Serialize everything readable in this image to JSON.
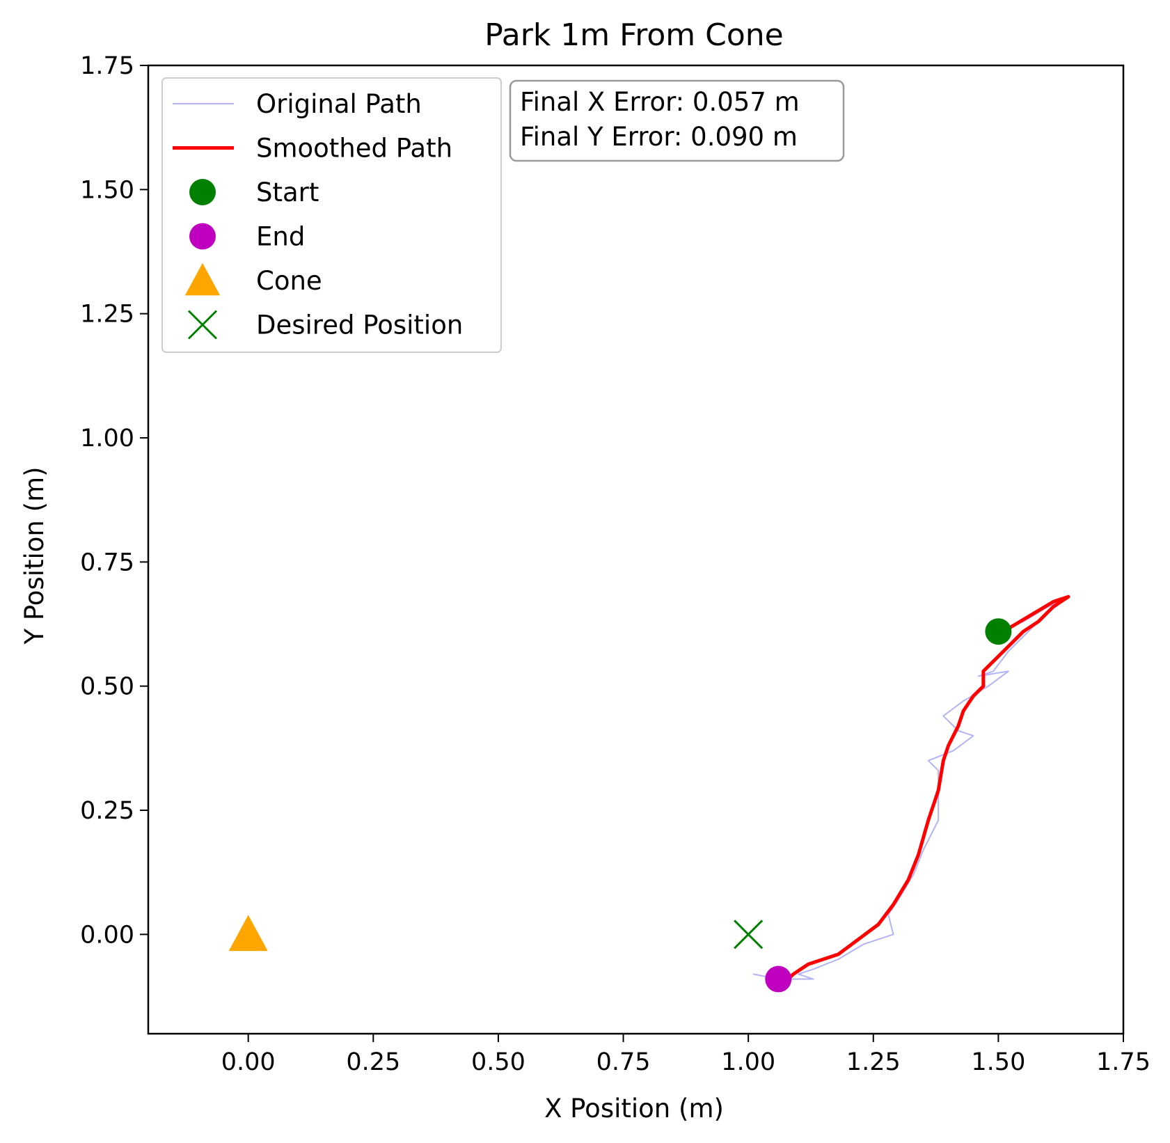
{
  "chart_data": {
    "type": "scatter",
    "title": "Park 1m From Cone",
    "xlabel": "X Position (m)",
    "ylabel": "Y Position (m)",
    "xlim": [
      -0.2,
      1.75
    ],
    "ylim": [
      -0.2,
      1.75
    ],
    "xticks": [
      0.0,
      0.25,
      0.5,
      0.75,
      1.0,
      1.25,
      1.5,
      1.75
    ],
    "yticks": [
      0.0,
      0.25,
      0.5,
      0.75,
      1.0,
      1.25,
      1.5,
      1.75
    ],
    "xtick_labels": [
      "0.00",
      "0.25",
      "0.50",
      "0.75",
      "1.00",
      "1.25",
      "1.50",
      "1.75"
    ],
    "ytick_labels": [
      "0.00",
      "0.25",
      "0.50",
      "0.75",
      "1.00",
      "1.25",
      "1.50",
      "1.75"
    ],
    "grid": false,
    "legend_position": "upper-left",
    "series": [
      {
        "name": "Original Path",
        "kind": "line",
        "color": "#b3b3f5",
        "points": [
          [
            1.5,
            0.61
          ],
          [
            1.55,
            0.63
          ],
          [
            1.6,
            0.66
          ],
          [
            1.64,
            0.68
          ],
          [
            1.59,
            0.64
          ],
          [
            1.55,
            0.6
          ],
          [
            1.52,
            0.57
          ],
          [
            1.49,
            0.53
          ],
          [
            1.46,
            0.52
          ],
          [
            1.52,
            0.53
          ],
          [
            1.48,
            0.5
          ],
          [
            1.43,
            0.47
          ],
          [
            1.39,
            0.44
          ],
          [
            1.42,
            0.41
          ],
          [
            1.45,
            0.4
          ],
          [
            1.41,
            0.37
          ],
          [
            1.36,
            0.35
          ],
          [
            1.38,
            0.33
          ],
          [
            1.38,
            0.28
          ],
          [
            1.38,
            0.23
          ],
          [
            1.35,
            0.17
          ],
          [
            1.33,
            0.12
          ],
          [
            1.3,
            0.07
          ],
          [
            1.28,
            0.04
          ],
          [
            1.29,
            0.0
          ],
          [
            1.23,
            -0.02
          ],
          [
            1.18,
            -0.05
          ],
          [
            1.13,
            -0.07
          ],
          [
            1.1,
            -0.08
          ],
          [
            1.13,
            -0.09
          ],
          [
            1.06,
            -0.09
          ],
          [
            1.01,
            -0.08
          ],
          [
            1.06,
            -0.09
          ]
        ]
      },
      {
        "name": "Smoothed Path",
        "kind": "line",
        "color": "#ff0000",
        "points": [
          [
            1.51,
            0.61
          ],
          [
            1.56,
            0.64
          ],
          [
            1.61,
            0.67
          ],
          [
            1.64,
            0.68
          ],
          [
            1.61,
            0.66
          ],
          [
            1.58,
            0.63
          ],
          [
            1.55,
            0.61
          ],
          [
            1.52,
            0.58
          ],
          [
            1.49,
            0.55
          ],
          [
            1.47,
            0.53
          ],
          [
            1.47,
            0.5
          ],
          [
            1.45,
            0.48
          ],
          [
            1.43,
            0.45
          ],
          [
            1.42,
            0.42
          ],
          [
            1.4,
            0.38
          ],
          [
            1.39,
            0.35
          ],
          [
            1.38,
            0.29
          ],
          [
            1.36,
            0.23
          ],
          [
            1.34,
            0.16
          ],
          [
            1.32,
            0.11
          ],
          [
            1.29,
            0.06
          ],
          [
            1.26,
            0.02
          ],
          [
            1.22,
            -0.01
          ],
          [
            1.18,
            -0.04
          ],
          [
            1.12,
            -0.06
          ],
          [
            1.09,
            -0.08
          ],
          [
            1.08,
            -0.09
          ]
        ]
      },
      {
        "name": "Start",
        "kind": "marker",
        "marker": "circle",
        "color": "#008000",
        "points": [
          [
            1.5,
            0.61
          ]
        ]
      },
      {
        "name": "End",
        "kind": "marker",
        "marker": "circle",
        "color": "#bf00bf",
        "points": [
          [
            1.06,
            -0.09
          ]
        ]
      },
      {
        "name": "Cone",
        "kind": "marker",
        "marker": "triangle",
        "color": "#ffa500",
        "points": [
          [
            0.0,
            0.0
          ]
        ]
      },
      {
        "name": "Desired Position",
        "kind": "marker",
        "marker": "x",
        "color": "#008000",
        "points": [
          [
            1.0,
            0.0
          ]
        ]
      }
    ],
    "annotation": {
      "lines": [
        "Final X Error: 0.057 m",
        "Final Y Error: 0.090 m"
      ]
    }
  }
}
